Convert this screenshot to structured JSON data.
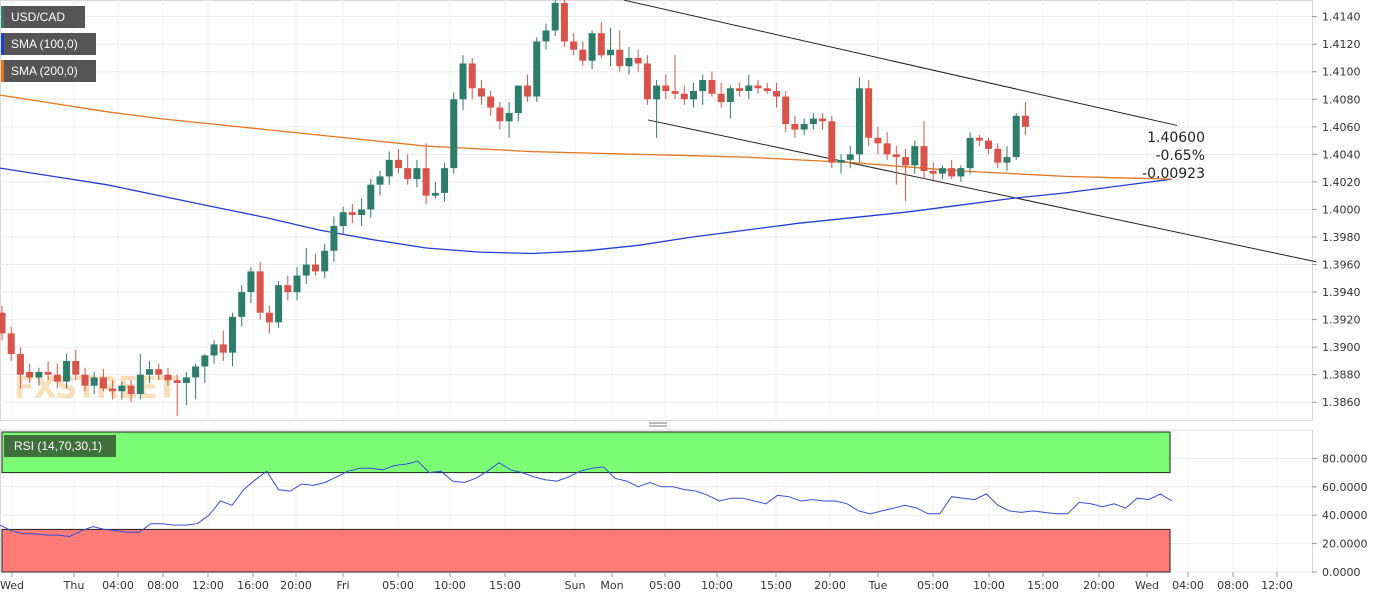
{
  "legend": {
    "symbol": "USD/CAD",
    "sma100": "SMA (100,0)",
    "sma200": "SMA (200,0)",
    "rsi": "RSI (14,70,30,1)",
    "sma100_color": "#1f3fd6",
    "sma200_color": "#e8741e",
    "symbol_color": "#2e7d6b"
  },
  "watermark": "FXSTREET",
  "last_price": {
    "price": "1.40600",
    "change_pct": "-0.65%",
    "change_abs": "-0.00923"
  },
  "colors": {
    "bull": "#2e7d6b",
    "bear": "#d9534a",
    "rsi_line": "#3a4fd6",
    "overbought_zone": "#7cfc74",
    "oversold_zone": "#ff7b78"
  },
  "chart_data": [
    {
      "type": "candlestick",
      "symbol": "USD/CAD",
      "ylim": [
        1.385,
        1.4155
      ],
      "y_ticks": [
        "1.4140",
        "1.4120",
        "1.4100",
        "1.4080",
        "1.4060",
        "1.4040",
        "1.4020",
        "1.4000",
        "1.3980",
        "1.3960",
        "1.3940",
        "1.3920",
        "1.3900",
        "1.3880",
        "1.3860"
      ],
      "candles": [
        [
          1.3925,
          1.393,
          1.3905,
          1.391
        ],
        [
          1.391,
          1.3915,
          1.389,
          1.3895
        ],
        [
          1.3895,
          1.39,
          1.387,
          1.388
        ],
        [
          1.3882,
          1.3888,
          1.3874,
          1.3878
        ],
        [
          1.3878,
          1.3885,
          1.3872,
          1.3882
        ],
        [
          1.3882,
          1.389,
          1.3876,
          1.388
        ],
        [
          1.388,
          1.3888,
          1.387,
          1.3875
        ],
        [
          1.3875,
          1.3895,
          1.387,
          1.389
        ],
        [
          1.389,
          1.3898,
          1.3876,
          1.388
        ],
        [
          1.388,
          1.3885,
          1.3868,
          1.3872
        ],
        [
          1.3872,
          1.3882,
          1.3866,
          1.3878
        ],
        [
          1.3878,
          1.3884,
          1.3868,
          1.387
        ],
        [
          1.387,
          1.3876,
          1.3862,
          1.3868
        ],
        [
          1.3868,
          1.3875,
          1.3862,
          1.3872
        ],
        [
          1.3872,
          1.3876,
          1.386,
          1.3866
        ],
        [
          1.3866,
          1.3895,
          1.3862,
          1.388
        ],
        [
          1.388,
          1.389,
          1.3874,
          1.3884
        ],
        [
          1.3884,
          1.3888,
          1.3876,
          1.388
        ],
        [
          1.388,
          1.3885,
          1.3872,
          1.3876
        ],
        [
          1.3876,
          1.388,
          1.385,
          1.3874
        ],
        [
          1.3874,
          1.3882,
          1.3858,
          1.3878
        ],
        [
          1.3878,
          1.3888,
          1.3862,
          1.3886
        ],
        [
          1.3886,
          1.3895,
          1.3874,
          1.3894
        ],
        [
          1.3894,
          1.3905,
          1.3888,
          1.3902
        ],
        [
          1.3902,
          1.3912,
          1.389,
          1.3896
        ],
        [
          1.3896,
          1.3925,
          1.3886,
          1.3922
        ],
        [
          1.3922,
          1.3945,
          1.3915,
          1.394
        ],
        [
          1.394,
          1.3958,
          1.3932,
          1.3955
        ],
        [
          1.3955,
          1.3962,
          1.392,
          1.3925
        ],
        [
          1.3925,
          1.393,
          1.391,
          1.3918
        ],
        [
          1.3918,
          1.3948,
          1.3914,
          1.3945
        ],
        [
          1.3945,
          1.3952,
          1.3934,
          1.394
        ],
        [
          1.394,
          1.3958,
          1.3934,
          1.3952
        ],
        [
          1.3952,
          1.3972,
          1.3946,
          1.396
        ],
        [
          1.396,
          1.3968,
          1.3952,
          1.3955
        ],
        [
          1.3955,
          1.3975,
          1.395,
          1.397
        ],
        [
          1.397,
          1.3995,
          1.3962,
          1.3988
        ],
        [
          1.3988,
          1.4002,
          1.3982,
          1.3998
        ],
        [
          1.3998,
          1.4004,
          1.399,
          1.3996
        ],
        [
          1.3996,
          1.4008,
          1.3988,
          1.4
        ],
        [
          1.4,
          1.4022,
          1.3994,
          1.4018
        ],
        [
          1.4018,
          1.4028,
          1.401,
          1.4024
        ],
        [
          1.4024,
          1.4042,
          1.4018,
          1.4036
        ],
        [
          1.4036,
          1.4044,
          1.4026,
          1.403
        ],
        [
          1.403,
          1.404,
          1.4018,
          1.4022
        ],
        [
          1.4022,
          1.4036,
          1.4016,
          1.403
        ],
        [
          1.403,
          1.4048,
          1.4004,
          1.401
        ],
        [
          1.401,
          1.402,
          1.4008,
          1.4012
        ],
        [
          1.4012,
          1.4034,
          1.4006,
          1.403
        ],
        [
          1.403,
          1.4085,
          1.4026,
          1.408
        ],
        [
          1.408,
          1.4112,
          1.4072,
          1.4106
        ],
        [
          1.4106,
          1.411,
          1.408,
          1.4088
        ],
        [
          1.4088,
          1.4094,
          1.4076,
          1.4082
        ],
        [
          1.4082,
          1.4086,
          1.4068,
          1.4074
        ],
        [
          1.4074,
          1.4078,
          1.4058,
          1.4064
        ],
        [
          1.4064,
          1.4078,
          1.4052,
          1.407
        ],
        [
          1.407,
          1.409,
          1.4064,
          1.409
        ],
        [
          1.409,
          1.4098,
          1.4078,
          1.4082
        ],
        [
          1.4082,
          1.4125,
          1.4078,
          1.4122
        ],
        [
          1.4122,
          1.4135,
          1.4116,
          1.413
        ],
        [
          1.413,
          1.4152,
          1.4126,
          1.415
        ],
        [
          1.415,
          1.4152,
          1.4118,
          1.4122
        ],
        [
          1.4122,
          1.4128,
          1.4112,
          1.4116
        ],
        [
          1.4116,
          1.4122,
          1.4104,
          1.4108
        ],
        [
          1.4108,
          1.413,
          1.4102,
          1.4128
        ],
        [
          1.4128,
          1.4136,
          1.411,
          1.4112
        ],
        [
          1.4112,
          1.4132,
          1.4104,
          1.4116
        ],
        [
          1.4116,
          1.413,
          1.41,
          1.4104
        ],
        [
          1.4104,
          1.4118,
          1.4098,
          1.411
        ],
        [
          1.411,
          1.4116,
          1.41,
          1.4106
        ],
        [
          1.4106,
          1.4112,
          1.4076,
          1.408
        ],
        [
          1.408,
          1.4094,
          1.4052,
          1.409
        ],
        [
          1.409,
          1.4098,
          1.408,
          1.4086
        ],
        [
          1.4086,
          1.4112,
          1.408,
          1.4084
        ],
        [
          1.4084,
          1.409,
          1.4076,
          1.408
        ],
        [
          1.408,
          1.4092,
          1.4074,
          1.4086
        ],
        [
          1.4086,
          1.4098,
          1.4076,
          1.4094
        ],
        [
          1.4094,
          1.41,
          1.4082,
          1.4084
        ],
        [
          1.4084,
          1.4092,
          1.4074,
          1.4078
        ],
        [
          1.4078,
          1.409,
          1.4066,
          1.4088
        ],
        [
          1.4088,
          1.4092,
          1.4082,
          1.4086
        ],
        [
          1.4086,
          1.4098,
          1.408,
          1.409
        ],
        [
          1.409,
          1.4094,
          1.4084,
          1.4088
        ],
        [
          1.4088,
          1.4092,
          1.4084,
          1.4086
        ],
        [
          1.4086,
          1.4092,
          1.4074,
          1.4082
        ],
        [
          1.4082,
          1.4086,
          1.4056,
          1.4062
        ],
        [
          1.4062,
          1.4068,
          1.4052,
          1.4058
        ],
        [
          1.4058,
          1.4066,
          1.4054,
          1.4062
        ],
        [
          1.4062,
          1.407,
          1.4058,
          1.4066
        ],
        [
          1.4066,
          1.407,
          1.4058,
          1.4064
        ],
        [
          1.4064,
          1.4068,
          1.403,
          1.4034
        ],
        [
          1.4034,
          1.404,
          1.4026,
          1.4036
        ],
        [
          1.4036,
          1.4046,
          1.403,
          1.404
        ],
        [
          1.404,
          1.4096,
          1.4034,
          1.4088
        ],
        [
          1.4088,
          1.4094,
          1.4046,
          1.4052
        ],
        [
          1.4052,
          1.406,
          1.404,
          1.4048
        ],
        [
          1.4048,
          1.4056,
          1.4036,
          1.404
        ],
        [
          1.404,
          1.4046,
          1.4018,
          1.4038
        ],
        [
          1.4038,
          1.4044,
          1.4006,
          1.4032
        ],
        [
          1.4032,
          1.405,
          1.4026,
          1.4046
        ],
        [
          1.4046,
          1.4064,
          1.4022,
          1.4028
        ],
        [
          1.4028,
          1.4034,
          1.402,
          1.4026
        ],
        [
          1.4026,
          1.4032,
          1.4022,
          1.403
        ],
        [
          1.403,
          1.4036,
          1.4022,
          1.4024
        ],
        [
          1.4024,
          1.4032,
          1.402,
          1.403
        ],
        [
          1.403,
          1.4056,
          1.4026,
          1.4052
        ],
        [
          1.4052,
          1.4054,
          1.4046,
          1.405
        ],
        [
          1.405,
          1.4052,
          1.404,
          1.4044
        ],
        [
          1.4044,
          1.4048,
          1.403,
          1.4034
        ],
        [
          1.4034,
          1.4046,
          1.4028,
          1.4038
        ],
        [
          1.4038,
          1.407,
          1.4036,
          1.4068
        ],
        [
          1.4068,
          1.4078,
          1.4054,
          1.406
        ]
      ],
      "series": [
        {
          "name": "SMA (100,0)",
          "values": [
            1.403,
            1.4024,
            1.4018,
            1.401,
            1.4002,
            1.3994,
            1.3985,
            1.3978,
            1.3972,
            1.3969,
            1.3968,
            1.397,
            1.3974,
            1.398,
            1.3985,
            1.399,
            1.3994,
            1.3998,
            1.4003,
            1.4008,
            1.4012,
            1.4017,
            1.4022
          ]
        },
        {
          "name": "SMA (200,0)",
          "values": [
            1.4083,
            1.4077,
            1.4071,
            1.4066,
            1.4062,
            1.4058,
            1.4054,
            1.405,
            1.4046,
            1.4044,
            1.4042,
            1.4041,
            1.404,
            1.4039,
            1.4038,
            1.4036,
            1.4034,
            1.4031,
            1.4028,
            1.4026,
            1.4024,
            1.4023,
            1.4022
          ]
        }
      ],
      "channel": {
        "upper": [
          [
            -0.1,
            1.4152
          ],
          [
            -0.58,
            1.4061
          ]
        ],
        "lower": [
          [
            0.16,
            1.4065
          ],
          [
            -0.32,
            1.3962
          ]
        ]
      },
      "x_ticks": [
        "Wed",
        "Thu",
        "04:00",
        "08:00",
        "12:00",
        "16:00",
        "20:00",
        "Fri",
        "05:00",
        "10:00",
        "15:00",
        "Sun",
        "Mon",
        "05:00",
        "10:00",
        "15:00",
        "20:00",
        "Tue",
        "05:00",
        "10:00",
        "15:00",
        "20:00",
        "Wed",
        "04:00",
        "08:00",
        "12:00"
      ]
    },
    {
      "type": "line",
      "name": "RSI (14,70,30,1)",
      "ylim": [
        0,
        100
      ],
      "y_ticks": [
        "80.0000",
        "60.0000",
        "40.0000",
        "20.0000",
        "0.0000"
      ],
      "overbought": 70,
      "oversold": 30,
      "values": [
        33,
        29,
        27,
        27,
        26,
        26,
        25,
        29,
        32,
        30,
        29,
        28,
        28,
        34,
        34,
        33,
        33,
        34,
        40,
        50,
        47,
        58,
        65,
        71,
        58,
        57,
        62,
        61,
        63,
        67,
        71,
        73,
        73,
        72,
        75,
        76,
        78,
        70,
        71,
        64,
        63,
        66,
        71,
        77,
        72,
        70,
        67,
        65,
        64,
        67,
        71,
        73,
        74,
        66,
        64,
        60,
        63,
        60,
        60,
        58,
        57,
        54,
        50,
        52,
        52,
        50,
        48,
        54,
        53,
        50,
        51,
        50,
        50,
        48,
        43,
        41,
        43,
        45,
        47,
        45,
        41,
        41,
        53,
        52,
        51,
        55,
        47,
        43,
        42,
        43,
        42,
        41,
        41,
        49,
        48,
        46,
        48,
        45,
        52,
        51,
        55,
        50
      ]
    }
  ]
}
